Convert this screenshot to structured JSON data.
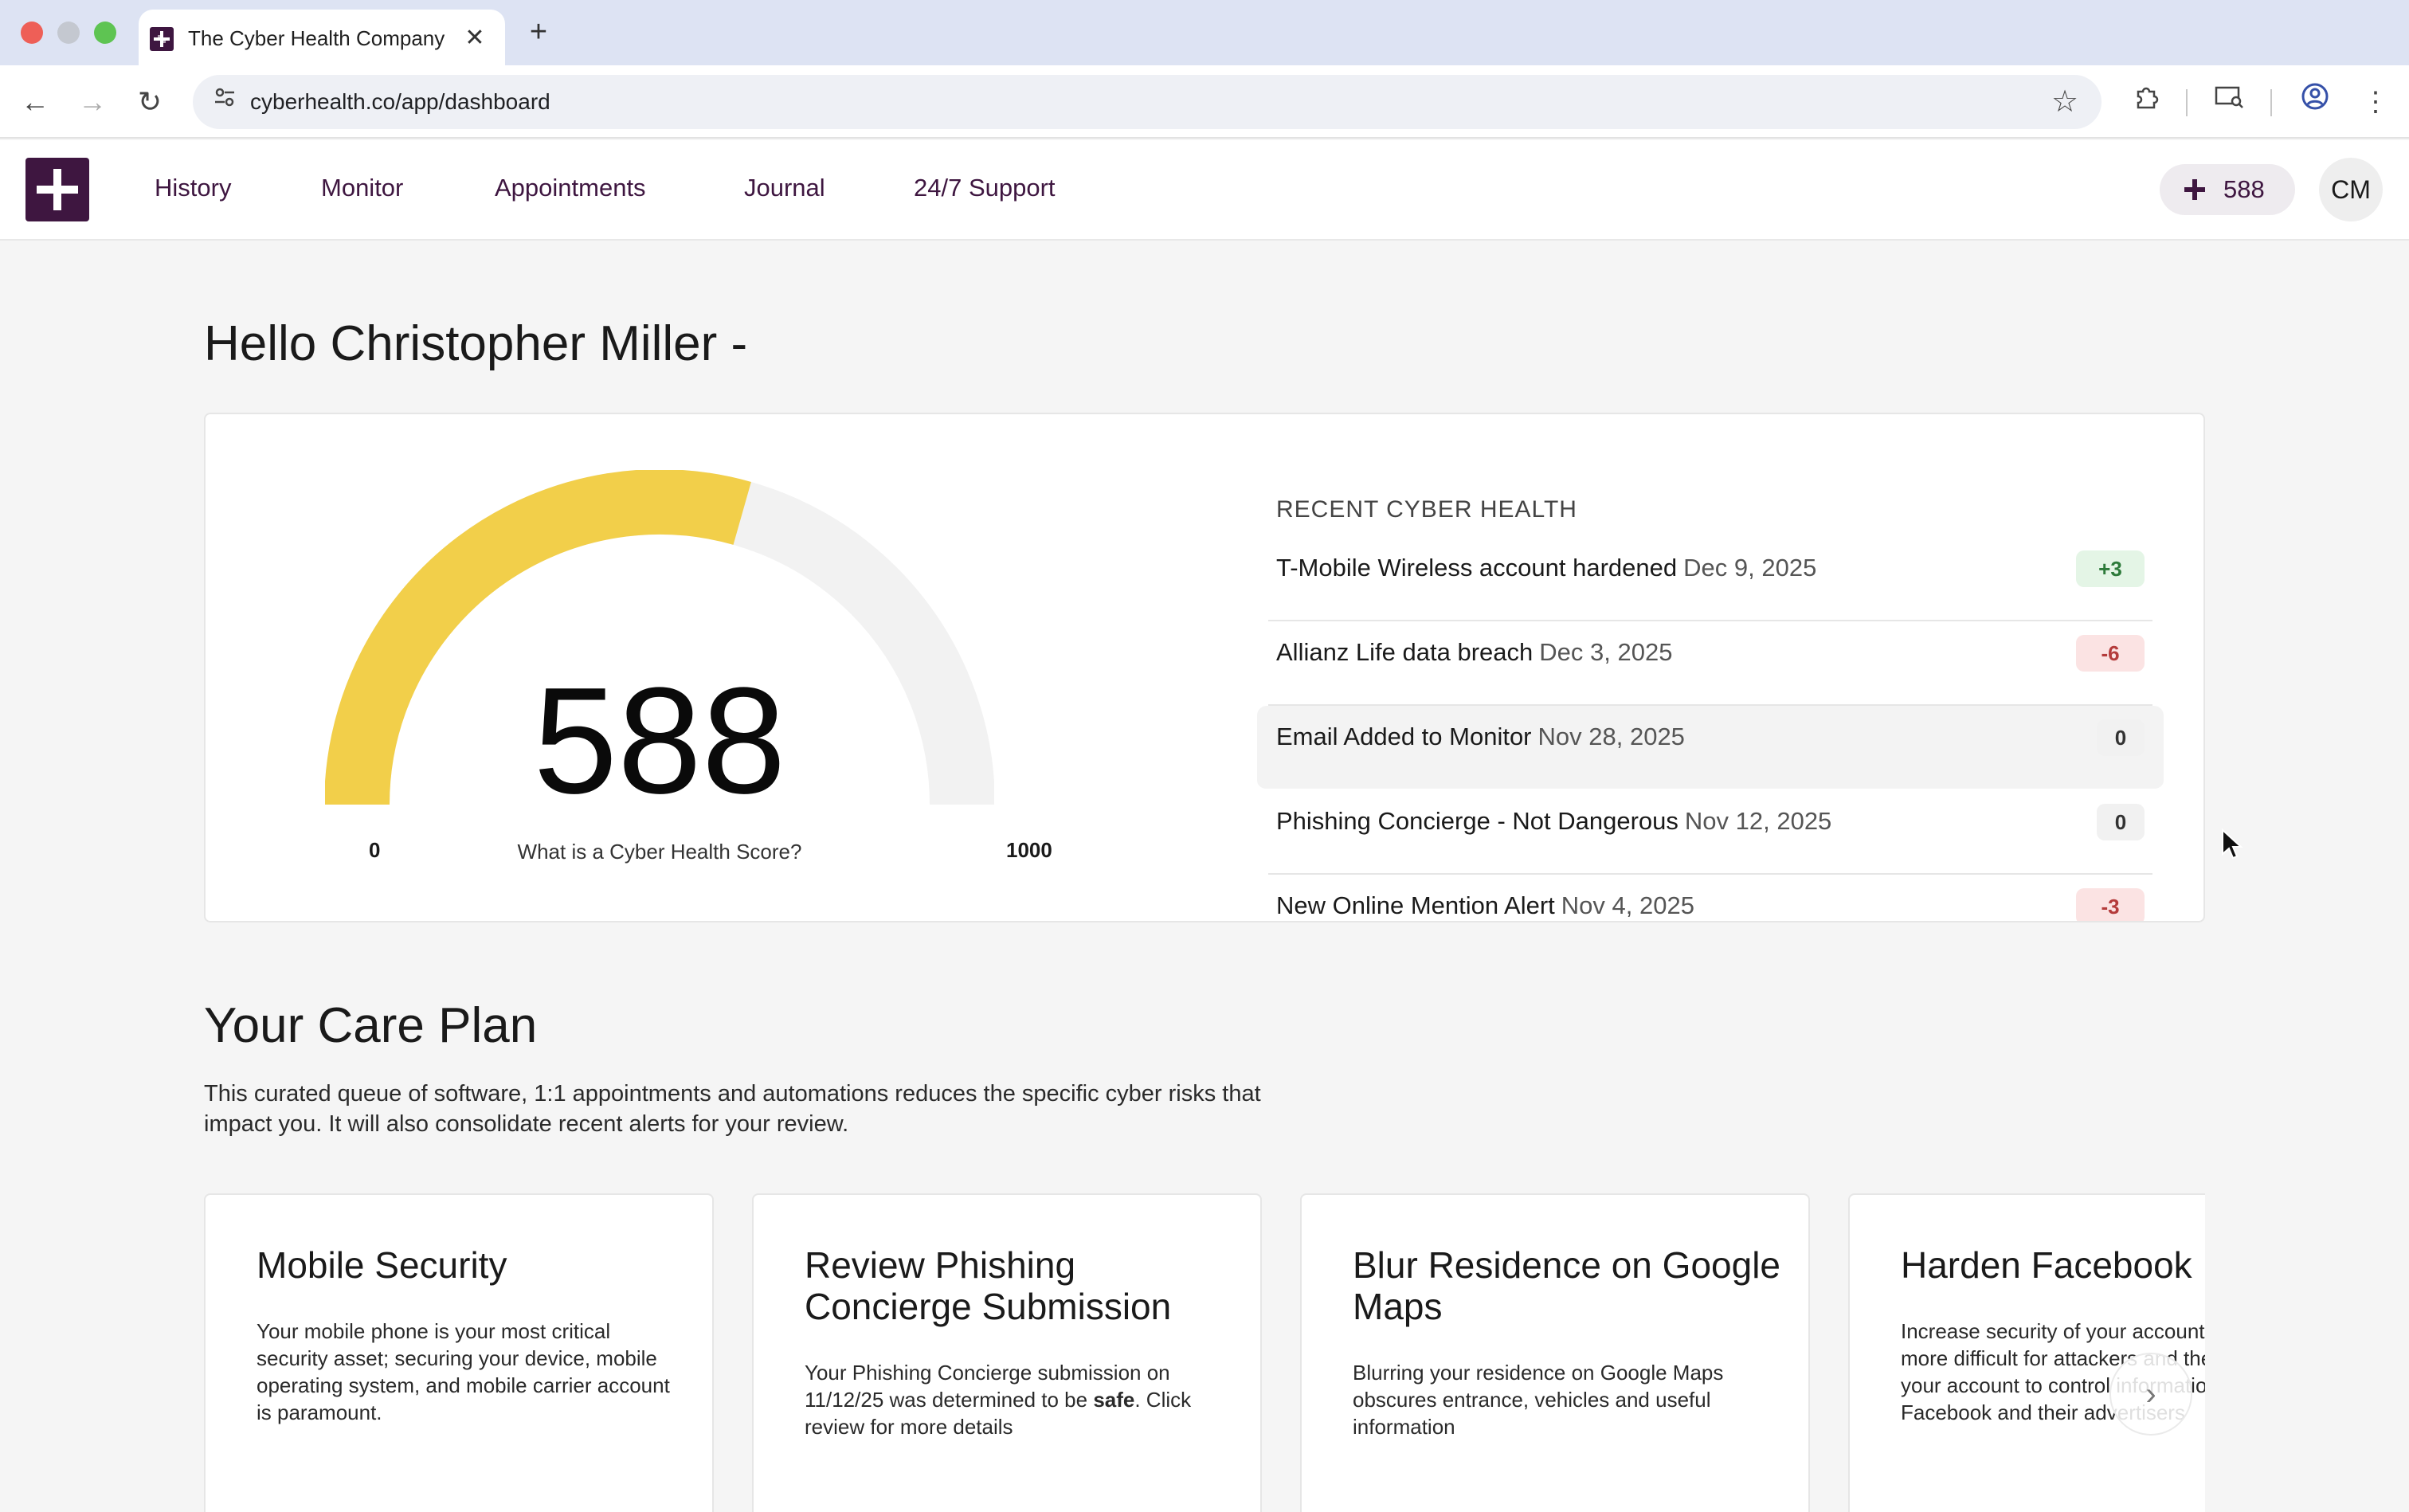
{
  "browser": {
    "tab_title": "The Cyber Health Company",
    "tab_close": "✕",
    "new_tab": "+",
    "url": "cyberhealth.co/app/dashboard",
    "back": "←",
    "forward": "→",
    "reload": "↻",
    "star": "☆"
  },
  "nav": {
    "links": [
      "History",
      "Monitor",
      "Appointments",
      "Journal",
      "24/7 Support"
    ],
    "score": "588",
    "avatar_initials": "CM"
  },
  "greeting": "Hello Christopher Miller -",
  "score_card": {
    "score": "588",
    "score_value": 588,
    "min": "0",
    "max": "1000",
    "caption": "What is a Cyber Health Score?",
    "gauge_color": "#f2cf4a",
    "track_color": "#f2f2f2",
    "recent_title": "RECENT CYBER HEALTH",
    "recent": [
      {
        "event": "T-Mobile Wireless account hardened",
        "date": "Dec 9, 2025",
        "delta": "+3"
      },
      {
        "event": "Allianz Life data breach",
        "date": "Dec 3, 2025",
        "delta": "-6"
      },
      {
        "event": "Email Added to Monitor",
        "date": "Nov 28, 2025",
        "delta": "0"
      },
      {
        "event": "Phishing Concierge - Not Dangerous",
        "date": "Nov 12, 2025",
        "delta": "0"
      },
      {
        "event": "New Online Mention Alert",
        "date": "Nov 4, 2025",
        "delta": "-3"
      }
    ]
  },
  "care_plan": {
    "title": "Your Care Plan",
    "description": "This curated queue of software, 1:1 appointments and automations reduces the specific cyber risks that impact you. It will also consolidate recent alerts for your review.",
    "cards": [
      {
        "title": "Mobile Security",
        "body": "Your mobile phone is your most critical security asset; securing your device, mobile operating system, and mobile carrier account is paramount."
      },
      {
        "title": "Review Phishing Concierge Submission",
        "body_pre": "Your Phishing Concierge submission on 11/12/25 was determined to be ",
        "body_bold": "safe",
        "body_post": ". Click review for more details"
      },
      {
        "title": "Blur Residence on Google Maps",
        "body": "Blurring your residence on Google Maps obscures entrance, vehicles and useful information"
      },
      {
        "title": "Harden Facebook",
        "body": "Increase security of your account and make it more difficult for attackers and the privacy of your account to control information sharing with Facebook and their advertisers"
      }
    ],
    "next_arrow": "›"
  },
  "colors": {
    "brand": "#3e1640",
    "gauge_fill": "#f2cf4a",
    "positive": "#2d7a3a",
    "negative": "#b43b3b"
  }
}
